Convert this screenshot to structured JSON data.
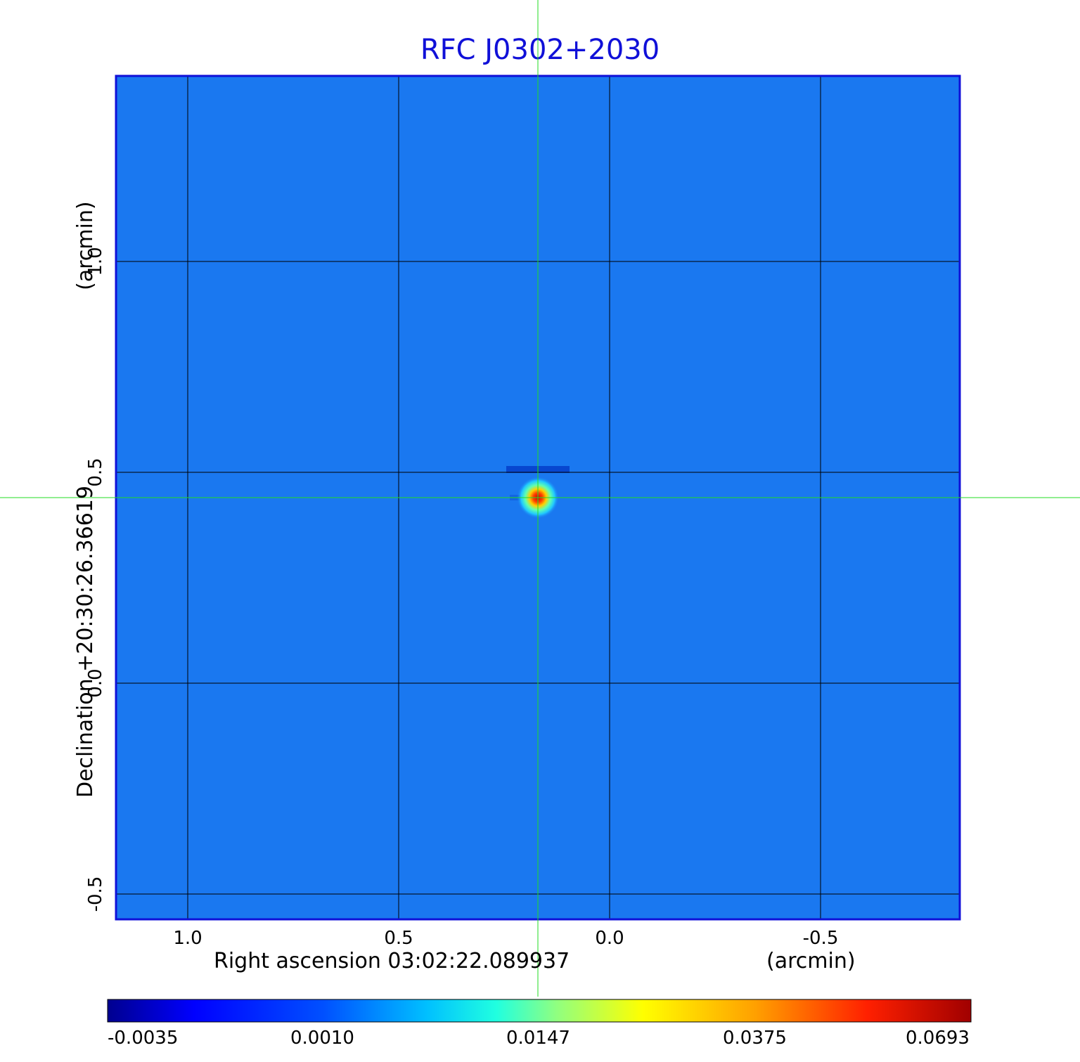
{
  "chart_data": {
    "type": "heatmap",
    "title": "RFC J0302+2030",
    "xlabel": "Right ascension  03:02:22.089937",
    "xunit": "(arcmin)",
    "ylabel": "Declination  +20:30:26.36619",
    "yunit": "(arcmin)",
    "xlim": [
      1.17,
      -0.83
    ],
    "ylim": [
      -0.56,
      1.44
    ],
    "x_ticks": [
      1.0,
      0.5,
      0.0,
      -0.5
    ],
    "x_tick_labels": [
      "1.0",
      "0.5",
      "0.0",
      "-0.5"
    ],
    "y_ticks": [
      -0.5,
      0.0,
      0.5,
      1.0
    ],
    "y_tick_labels": [
      "-0.5",
      "0.0",
      "0.5",
      "1.0"
    ],
    "grid": true,
    "source_peak": {
      "x": 0.17,
      "y": 0.44,
      "value": 0.0693
    },
    "crosshair": {
      "x": 0.17,
      "y": 0.44
    },
    "colorbar": {
      "tick_values": [
        -0.0035,
        0.001,
        0.0147,
        0.0375,
        0.0693
      ],
      "tick_labels": [
        "-0.0035",
        "0.0010",
        "0.0147",
        "0.0375",
        "0.0693"
      ],
      "colormap": "jet"
    },
    "colors": {
      "title": "#1010d8",
      "background_field": "#1a78f0",
      "axes_border": "#1010d8",
      "grid": "#000000",
      "crosshair": "#22dd22"
    }
  }
}
